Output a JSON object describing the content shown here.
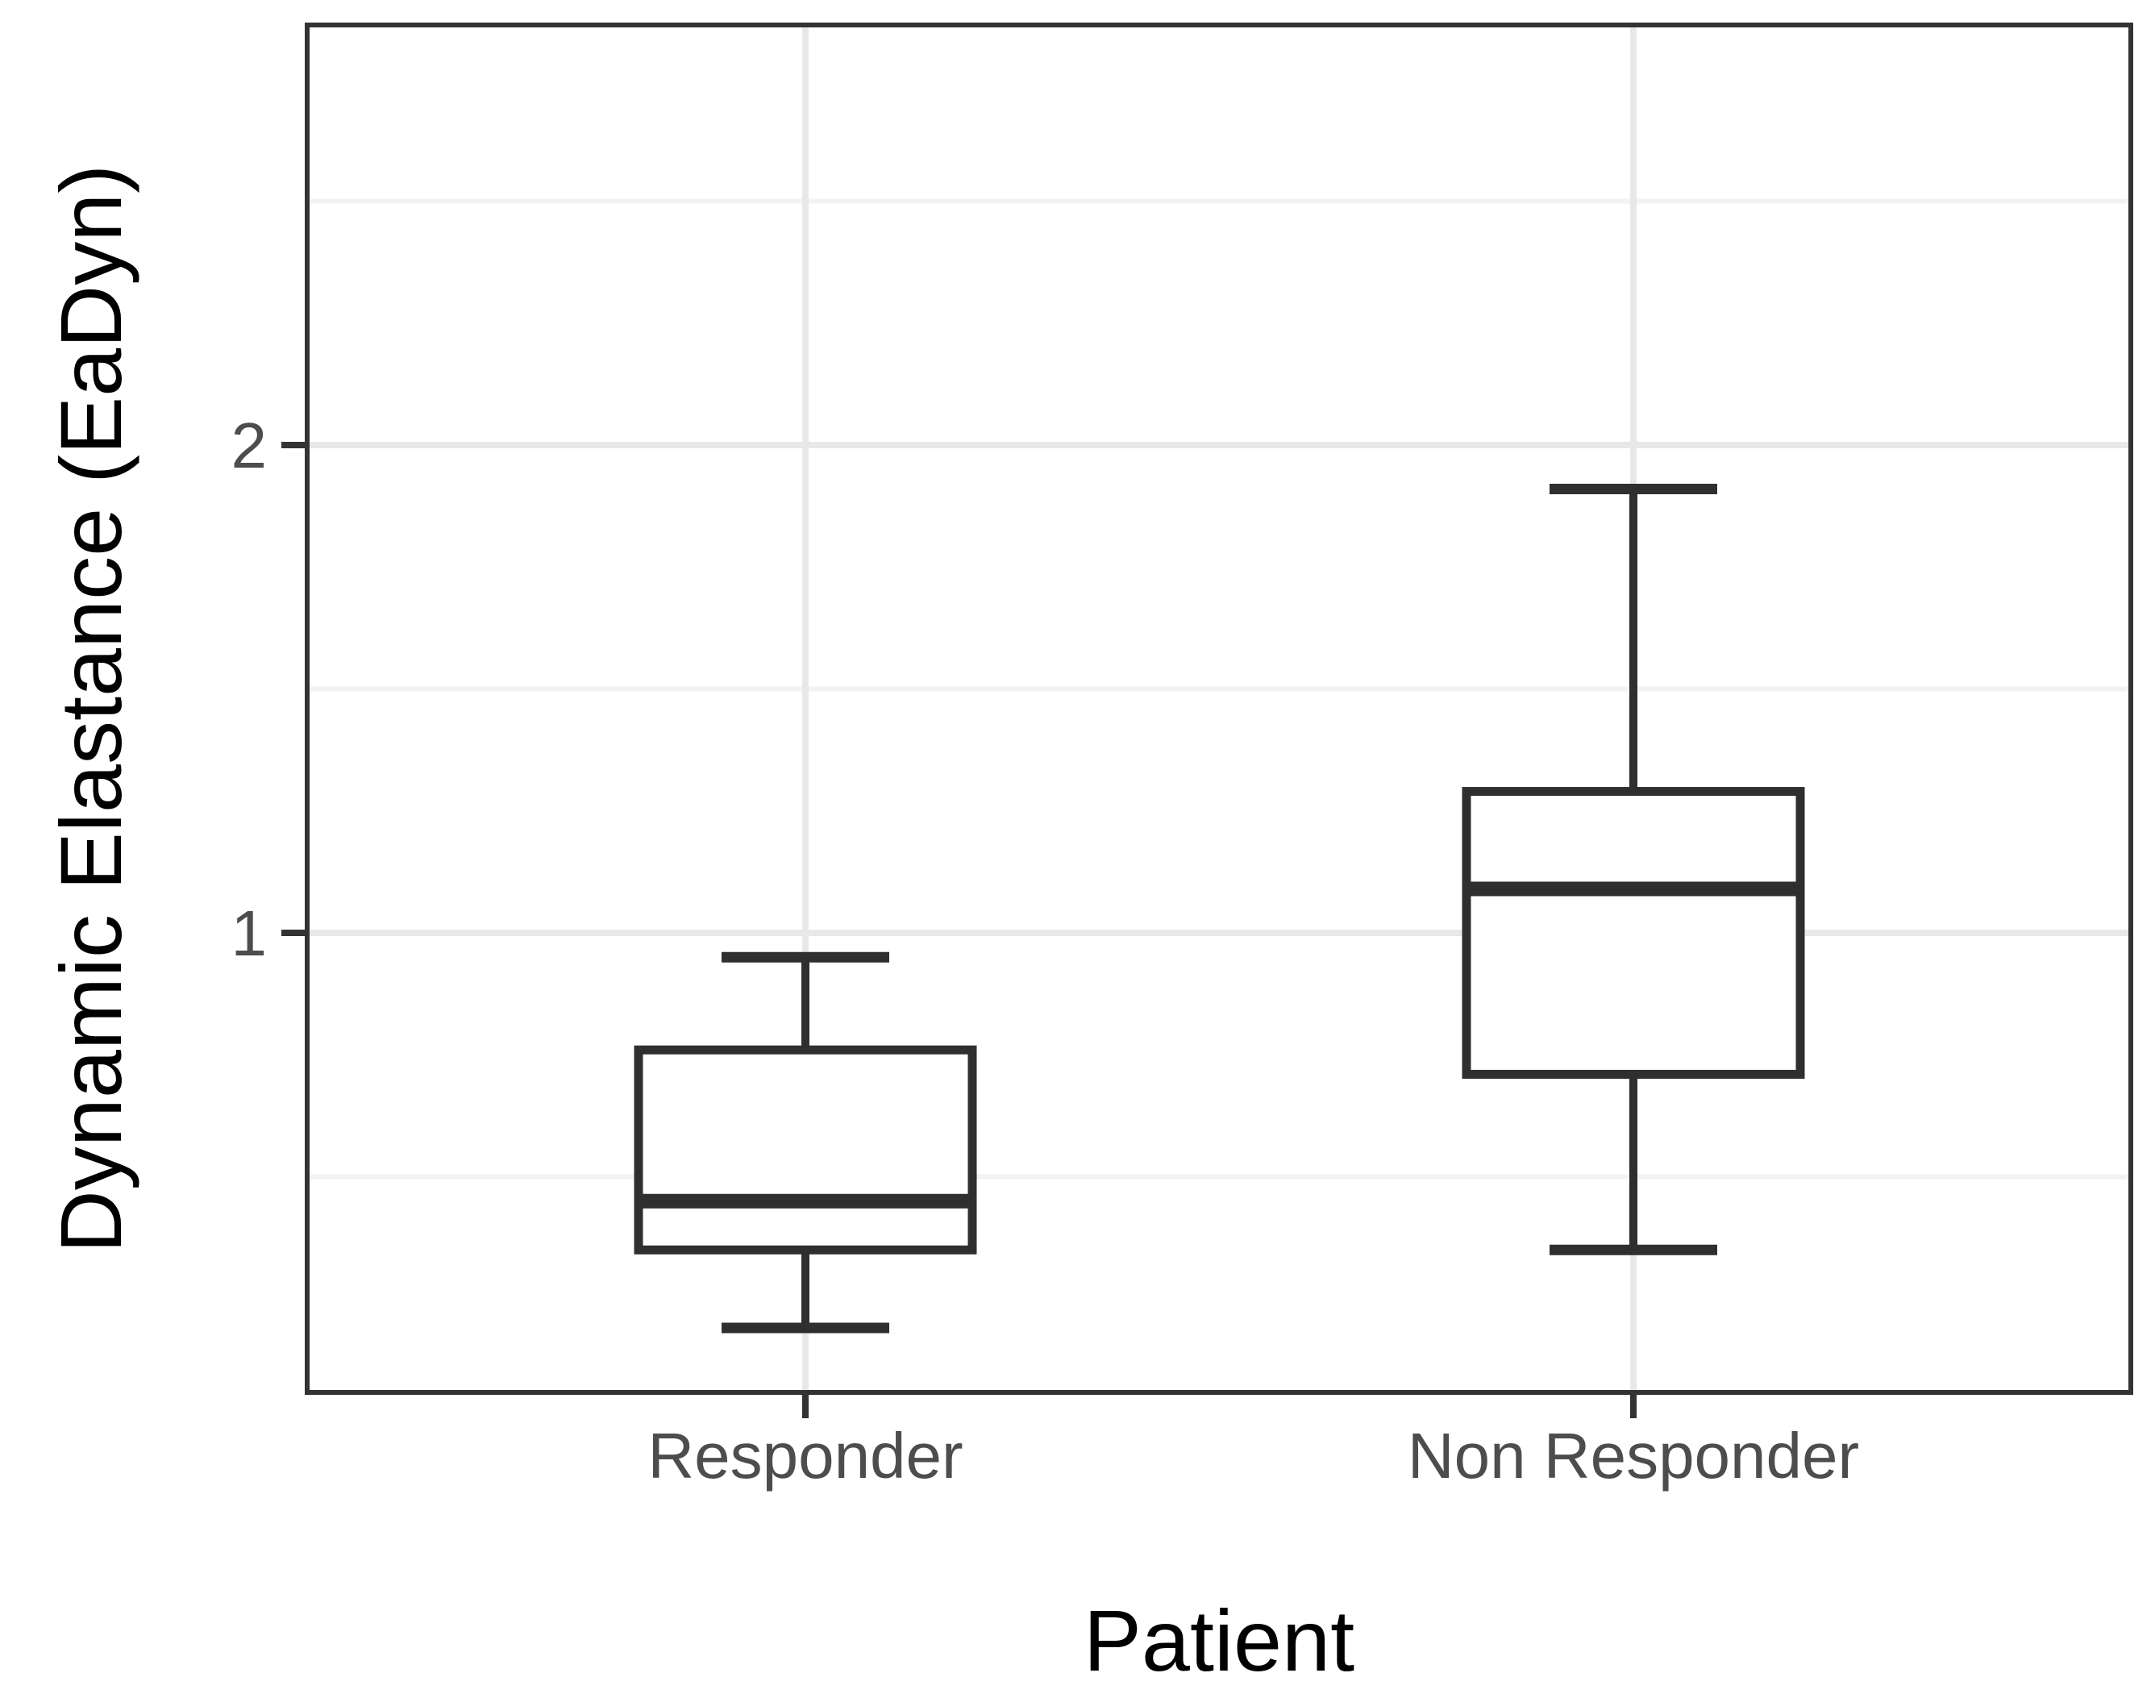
{
  "figure": {
    "description": "Box plot comparing dynamic elastance between responder and non responder patients",
    "background_color": "#ffffff"
  },
  "chart_data": {
    "type": "boxplot",
    "title": "",
    "xlabel": "Patient",
    "ylabel": "Dynamic Elastance (EaDyn)",
    "categories": [
      "Responder",
      "Non Responder"
    ],
    "series": [
      {
        "name": "Responder",
        "whisker_low": 0.19,
        "q1": 0.35,
        "median": 0.45,
        "q3": 0.76,
        "whisker_high": 0.95,
        "outliers": []
      },
      {
        "name": "Non Responder",
        "whisker_low": 0.35,
        "q1": 0.71,
        "median": 1.09,
        "q3": 1.29,
        "whisker_high": 1.91,
        "outliers": []
      }
    ],
    "y_axis": {
      "tick_labels": [
        "1",
        "2"
      ],
      "tick_values": [
        1,
        2
      ],
      "minor_gridline_values": [
        0.5,
        1.5,
        2.5
      ],
      "ylim": [
        0.06,
        2.86
      ]
    },
    "x_axis": {
      "tick_labels": [
        "Responder",
        "Non Responder"
      ]
    },
    "grid": "horizontal major + minor, vertical major at category centers",
    "legend": "none",
    "colors": {
      "box_stroke": "#2f2f2f",
      "box_fill": "#ffffff",
      "panel_border": "#333333",
      "tick_mark": "#333333",
      "major_gridline": "#e8e8e8",
      "minor_gridline": "#f2f2f2",
      "axis_text": "#4d4d4d",
      "axis_title": "#000000",
      "panel_background": "#ffffff"
    }
  }
}
